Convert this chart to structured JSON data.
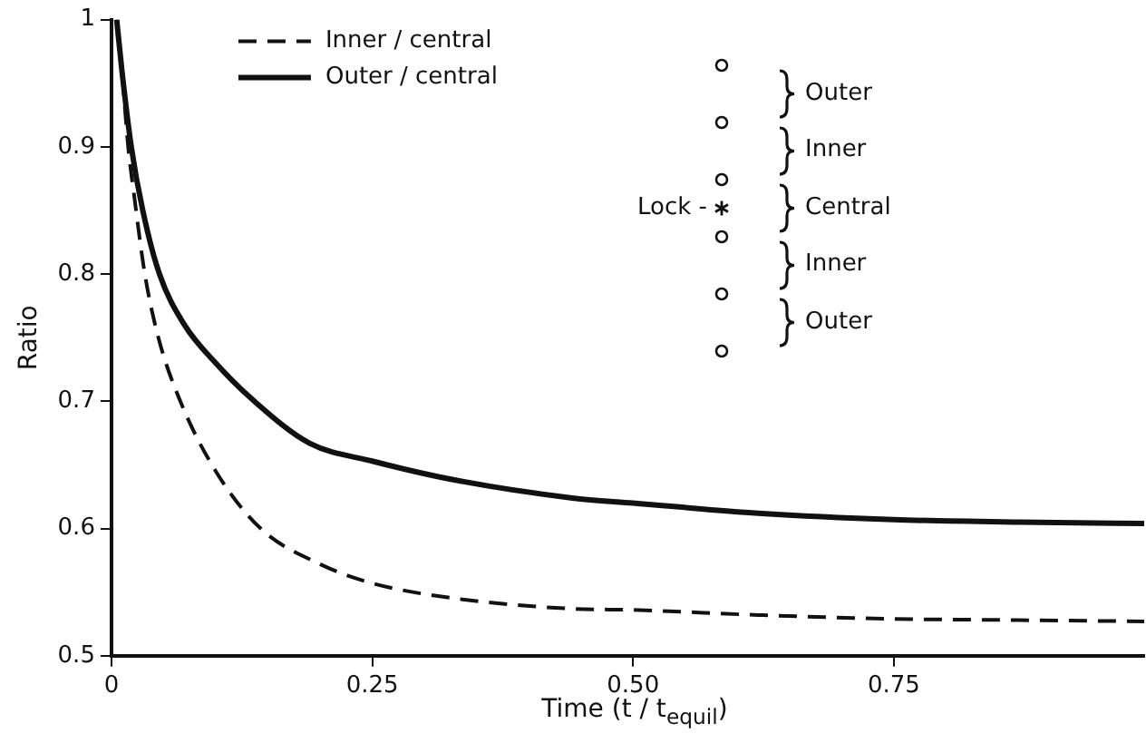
{
  "chart_data": {
    "type": "line",
    "xlabel": "Time  (t / t$_{equil}$)",
    "ylabel": "Ratio",
    "xlim": [
      0,
      0.99
    ],
    "ylim": [
      0.5,
      1
    ],
    "xticks": [
      0,
      {
        "value": 0.25,
        "label": "0.25"
      },
      {
        "value": 0.5,
        "label": "0.50"
      },
      {
        "value": 0.75,
        "label": "0.75"
      }
    ],
    "yticks": [
      0.5,
      0.6,
      0.7,
      0.8,
      0.9,
      1
    ],
    "grid": false,
    "legend": "top left",
    "marker": "none",
    "series": [
      {
        "name": "Inner / central",
        "color": "#111111",
        "line_style": "dashed",
        "x": [
          0.005,
          0.01,
          0.016,
          0.022,
          0.032,
          0.045,
          0.066,
          0.1,
          0.143,
          0.2,
          0.25,
          0.33,
          0.44,
          0.5,
          0.62,
          0.75,
          0.87,
          0.99
        ],
        "values": [
          1,
          0.96,
          0.9,
          0.86,
          0.8,
          0.75,
          0.7,
          0.645,
          0.6,
          0.572,
          0.557,
          0.545,
          0.537,
          0.536,
          0.532,
          0.529,
          0.528,
          0.527
        ]
      },
      {
        "name": "Outer / central",
        "color": "#111111",
        "line_style": "solid",
        "x": [
          0.005,
          0.01,
          0.019,
          0.03,
          0.046,
          0.07,
          0.1,
          0.137,
          0.19,
          0.25,
          0.33,
          0.442,
          0.5,
          0.62,
          0.75,
          0.87,
          0.99
        ],
        "values": [
          1,
          0.96,
          0.9,
          0.85,
          0.8,
          0.76,
          0.73,
          0.7,
          0.667,
          0.653,
          0.638,
          0.624,
          0.62,
          0.612,
          0.607,
          0.605,
          0.604
        ]
      }
    ],
    "annotations": [
      "Lock -",
      "Outer",
      "Inner",
      "Central",
      "Inner",
      "Outer"
    ]
  }
}
